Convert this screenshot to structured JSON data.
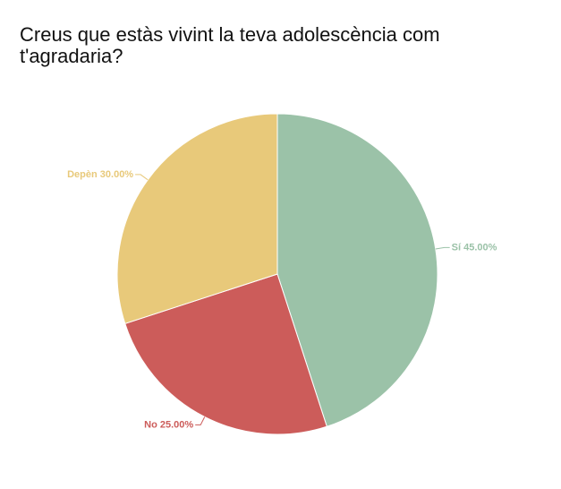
{
  "chart_data": {
    "type": "pie",
    "title": "Creus que estàs vivint la teva adolescència com t'agradaria?",
    "categories": [
      "Sí",
      "No",
      "Depèn"
    ],
    "values": [
      45,
      25,
      30
    ],
    "value_labels": [
      "45.00%",
      "25.00%",
      "30.00%"
    ],
    "colors": [
      "#9bc2a8",
      "#cc5c5a",
      "#e8c97a"
    ]
  }
}
